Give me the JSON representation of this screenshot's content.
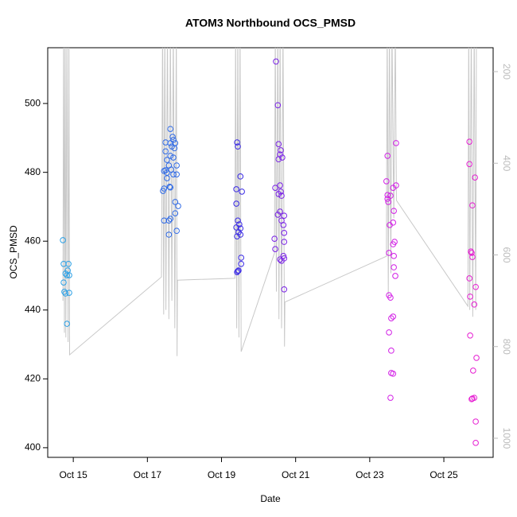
{
  "chart_data": {
    "type": "scatter",
    "title": "ATOM3 Northbound OCS_PMSD",
    "xlabel": "Date",
    "ylabel": "OCS_PMSD",
    "xlim": [
      14.31,
      26.33
    ],
    "xticks": [
      {
        "value": 15,
        "label": "Oct 15"
      },
      {
        "value": 17,
        "label": "Oct 17"
      },
      {
        "value": 19,
        "label": "Oct 19"
      },
      {
        "value": 21,
        "label": "Oct 21"
      },
      {
        "value": 23,
        "label": "Oct 23"
      },
      {
        "value": 25,
        "label": "Oct 25"
      }
    ],
    "ylim": [
      397.2,
      516.2
    ],
    "yticks": [
      400,
      420,
      440,
      460,
      480,
      500
    ],
    "y2lim": [
      1041.7,
      147.9
    ],
    "y2ticks": [
      200,
      400,
      600,
      800,
      1000
    ],
    "y2color": "#bbbbbb",
    "series": [
      {
        "color": "#2aa0e6",
        "x": [
          14.72,
          14.74,
          14.87,
          14.85,
          14.79,
          14.83,
          14.74,
          14.76,
          14.79,
          14.89,
          14.83,
          14.89
        ],
        "values": [
          460.3,
          453.4,
          453.4,
          451.5,
          450.6,
          450.1,
          448.0,
          445.3,
          444.8,
          445.0,
          436.0,
          450.1
        ]
      },
      {
        "color": "#2f6ae6",
        "x": [
          17.62,
          17.68,
          17.7,
          17.75,
          17.49,
          17.62,
          17.66,
          17.49,
          17.73,
          17.62,
          17.53,
          17.7,
          17.58,
          17.79,
          17.64,
          17.49,
          17.45,
          17.53,
          17.7,
          17.79,
          17.53,
          17.45,
          17.6,
          17.62,
          17.42,
          17.75,
          17.83,
          17.45,
          17.58,
          17.62,
          17.75,
          17.79,
          17.58
        ],
        "values": [
          492.6,
          490.3,
          489.4,
          488.5,
          488.7,
          488.5,
          487.5,
          486.1,
          487.0,
          484.8,
          483.6,
          484.3,
          482.0,
          482.0,
          480.8,
          480.6,
          480.4,
          479.9,
          479.4,
          479.4,
          478.3,
          475.3,
          475.8,
          475.6,
          474.6,
          471.4,
          470.2,
          466.0,
          466.0,
          466.5,
          468.1,
          463.0,
          461.9
        ]
      },
      {
        "color": "#3a2ae6",
        "x": [
          19.42,
          19.44,
          19.51,
          19.4,
          19.55,
          19.4,
          19.44,
          19.48,
          19.4,
          19.51,
          19.46,
          19.51,
          19.42,
          19.53,
          19.53,
          19.46,
          19.44,
          19.42
        ],
        "values": [
          488.7,
          487.5,
          478.8,
          475.1,
          474.4,
          470.9,
          466.0,
          464.9,
          464.0,
          463.7,
          462.6,
          461.9,
          461.4,
          455.2,
          453.4,
          451.5,
          451.3,
          451.0
        ]
      },
      {
        "color": "#7a22e6",
        "x": [
          20.47,
          20.52,
          20.54,
          20.6,
          20.58,
          20.54,
          20.64,
          20.45,
          20.58,
          20.6,
          20.54,
          20.62,
          20.58,
          20.52,
          20.69,
          20.62,
          20.67,
          20.69,
          20.43,
          20.69,
          20.45,
          20.67,
          20.69,
          20.58,
          20.62,
          20.69
        ],
        "values": [
          512.2,
          499.5,
          488.2,
          486.4,
          485.2,
          483.8,
          484.3,
          475.5,
          476.2,
          474.4,
          473.7,
          473.2,
          468.6,
          467.7,
          467.4,
          466.0,
          464.7,
          462.4,
          460.7,
          459.8,
          457.7,
          455.7,
          455.0,
          454.7,
          454.3,
          446.0
        ]
      },
      {
        "color": "#d21ee6",
        "x": [
          23.48,
          23.45,
          23.48,
          23.48,
          23.5,
          23.56,
          23.63,
          23.71,
          23.71,
          23.65,
          23.63,
          23.54,
          23.63,
          23.67,
          23.52,
          23.65,
          23.65,
          23.69,
          23.52,
          23.56,
          23.58,
          23.63,
          23.52,
          23.58,
          23.58,
          23.63,
          23.56
        ],
        "values": [
          484.8,
          477.4,
          473.4,
          472.3,
          471.4,
          473.2,
          475.5,
          476.2,
          488.5,
          468.8,
          465.4,
          464.7,
          459.1,
          459.8,
          456.6,
          455.7,
          452.4,
          449.9,
          444.3,
          443.6,
          437.6,
          438.1,
          433.5,
          428.2,
          421.7,
          421.5,
          414.5
        ]
      },
      {
        "color": "#e61ed2",
        "x": [
          25.69,
          25.69,
          25.84,
          25.77,
          25.73,
          25.75,
          25.77,
          25.69,
          25.86,
          25.71,
          25.82,
          25.71,
          25.88,
          25.79,
          25.82,
          25.77,
          25.75,
          25.86,
          25.86
        ],
        "values": [
          488.9,
          482.4,
          478.5,
          470.4,
          457.0,
          456.6,
          455.4,
          449.2,
          446.7,
          443.9,
          441.6,
          432.6,
          426.1,
          422.4,
          414.5,
          414.3,
          414.1,
          407.6,
          401.4
        ]
      },
      {
        "color": "#c8c8c8",
        "axis": "y2",
        "x": [
          14.72,
          14.74,
          14.76,
          14.78,
          14.8,
          14.83,
          14.86,
          14.88,
          14.9,
          17.38,
          17.41,
          17.44,
          17.47,
          17.5,
          17.54,
          17.58,
          17.62,
          17.66,
          17.7,
          17.74,
          17.78,
          17.8,
          17.81,
          19.36,
          19.38,
          19.41,
          19.44,
          19.47,
          19.5,
          19.53,
          20.43,
          20.45,
          20.48,
          20.52,
          20.55,
          20.58,
          20.62,
          20.66,
          20.7,
          20.71,
          23.45,
          23.47,
          23.5,
          23.53,
          23.57,
          23.6,
          23.65,
          23.69,
          23.72,
          25.65,
          25.67,
          25.7,
          25.74,
          25.78,
          25.82,
          25.86,
          25.88
        ],
        "values": [
          700,
          100,
          770,
          100,
          780,
          100,
          790,
          100,
          818,
          648,
          100,
          730,
          100,
          720,
          100,
          740,
          100,
          700,
          100,
          760,
          100,
          821,
          655,
          651,
          100,
          760,
          100,
          780,
          100,
          811,
          596,
          100,
          680,
          100,
          740,
          100,
          760,
          100,
          800,
          703,
          603,
          100,
          690,
          100,
          640,
          100,
          520,
          100,
          481,
          712,
          100,
          720,
          100,
          735,
          100,
          720,
          100
        ]
      }
    ]
  }
}
